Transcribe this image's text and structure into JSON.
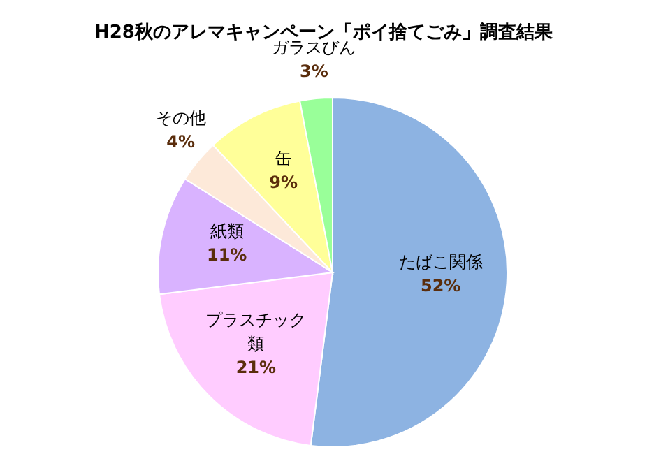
{
  "chart_data": {
    "type": "pie",
    "title": "H28秋のアレマキャンペーン「ポイ捨てごみ」調査結果",
    "categories": [
      "たばこ関係",
      "プラスチック類",
      "紙類",
      "その他",
      "缶",
      "ガラスびん"
    ],
    "values": [
      52,
      21,
      11,
      4,
      9,
      3
    ],
    "value_labels": [
      "52%",
      "21%",
      "11%",
      "4%",
      "9%",
      "3%"
    ],
    "colors": [
      "#8db3e2",
      "#ffccff",
      "#d9b3ff",
      "#fde9d9",
      "#ffff99",
      "#99ff99"
    ],
    "legend": false
  }
}
